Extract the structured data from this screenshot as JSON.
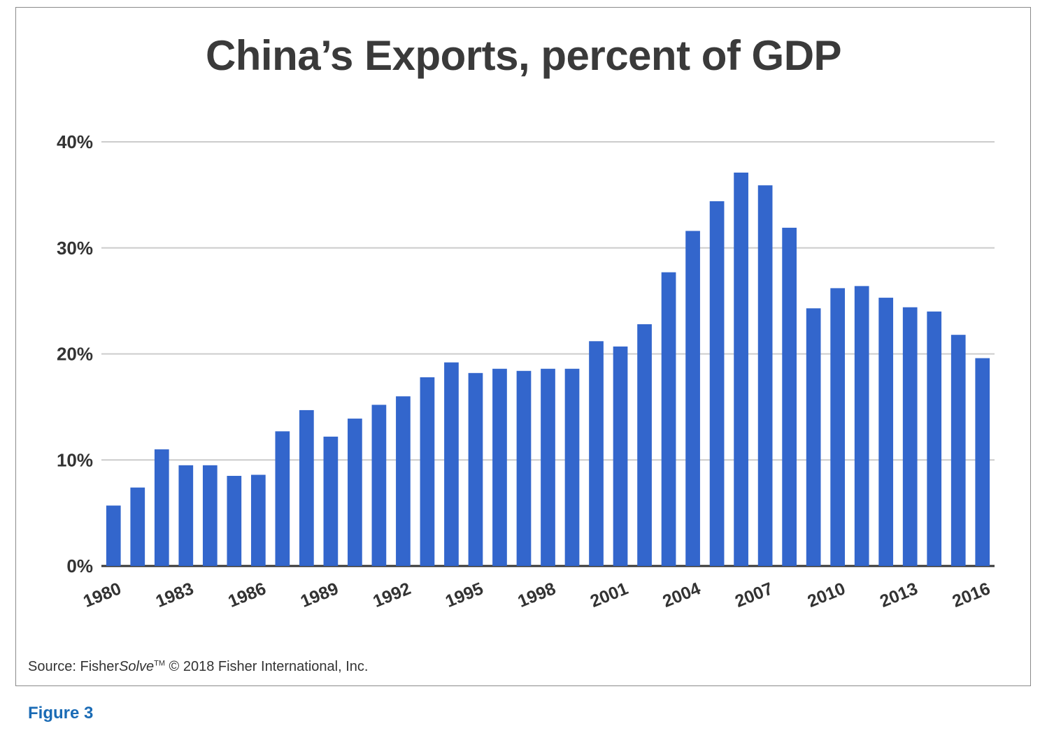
{
  "figure_label": "Figure 3",
  "source": {
    "prefix": "Source: Fisher",
    "brand_italic": "Solve",
    "trademark": "TM",
    "suffix": " © 2018 Fisher International, Inc."
  },
  "colors": {
    "bar": "#3366cc",
    "grid": "#cccccc",
    "axis": "#333333",
    "figure_label": "#1a6bb5"
  },
  "chart_data": {
    "type": "bar",
    "title": "China’s Exports, percent of GDP",
    "xlabel": "",
    "ylabel": "",
    "ylim": [
      0,
      40
    ],
    "y_ticks": [
      "0%",
      "10%",
      "20%",
      "30%",
      "40%"
    ],
    "y_tick_values": [
      0,
      10,
      20,
      30,
      40
    ],
    "grid": true,
    "legend": "none",
    "categories": [
      "1980",
      "1981",
      "1982",
      "1983",
      "1984",
      "1985",
      "1986",
      "1987",
      "1988",
      "1989",
      "1990",
      "1991",
      "1992",
      "1993",
      "1994",
      "1995",
      "1996",
      "1997",
      "1998",
      "1999",
      "2000",
      "2001",
      "2002",
      "2003",
      "2004",
      "2005",
      "2006",
      "2007",
      "2008",
      "2009",
      "2010",
      "2011",
      "2012",
      "2013",
      "2014",
      "2015",
      "2016"
    ],
    "x_tick_labels": [
      "1980",
      "1983",
      "1986",
      "1989",
      "1992",
      "1995",
      "1998",
      "2001",
      "2004",
      "2007",
      "2010",
      "2013",
      "2016"
    ],
    "values": [
      5.7,
      7.4,
      11.0,
      9.5,
      9.5,
      8.5,
      8.6,
      12.7,
      14.7,
      12.2,
      13.9,
      15.2,
      16.0,
      17.8,
      19.2,
      18.2,
      18.6,
      18.4,
      18.6,
      18.6,
      21.2,
      20.7,
      22.8,
      27.7,
      31.6,
      34.4,
      37.1,
      35.9,
      31.9,
      24.3,
      26.2,
      26.4,
      25.3,
      24.4,
      24.0,
      21.8,
      19.6
    ]
  }
}
